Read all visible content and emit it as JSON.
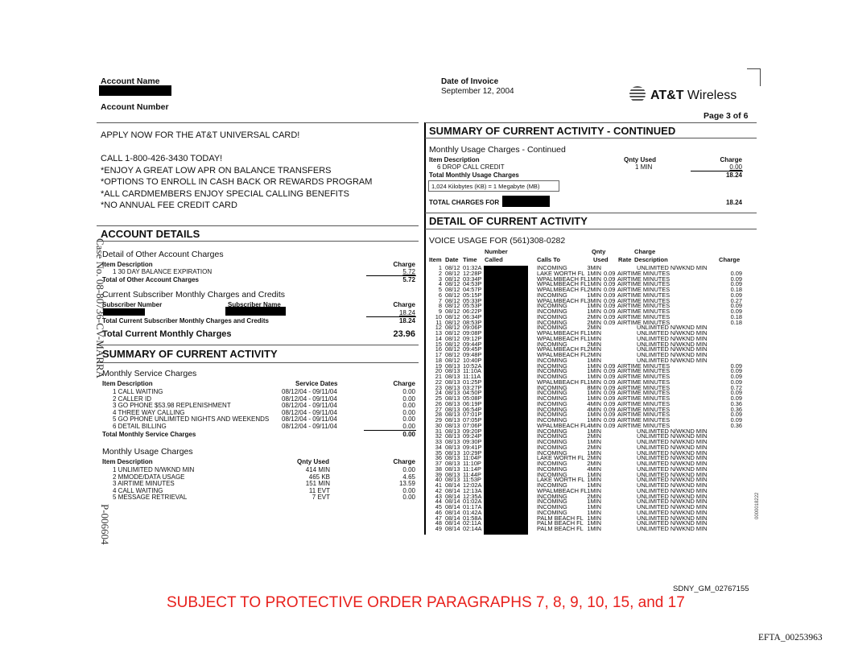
{
  "header": {
    "account_name_label": "Account Name",
    "account_number_label": "Account Number",
    "date_label": "Date of Invoice",
    "date_value": "September 12, 2004",
    "logo": "AT&T Wireless",
    "page": "Page  3 of 6"
  },
  "promo": {
    "lines": [
      "APPLY NOW FOR THE AT&T UNIVERSAL CARD!",
      "CALL 1-800-426-3430 TODAY!",
      "*ENJOY A GREAT LOW APR ON BALANCE TRANSFERS",
      "*OPTIONS TO ENROLL IN CASH BACK OR REWARDS PROGRAM",
      "*ALL CARDMEMBERS ENJOY SPECIAL CALLING BENEFITS",
      "*NO ANNUAL FEE CREDIT CARD"
    ]
  },
  "account_details": {
    "title": "ACCOUNT DETAILS",
    "other_title": "Detail of Other Account Charges",
    "item_desc": "Item Description",
    "charge": "Charge",
    "other_item": "1 30 DAY BALANCE EXPIRATION",
    "other_item_charge": "5.72",
    "other_total_label": "Total of Other Account Charges",
    "other_total": "5.72",
    "sub_title": "Current Subscriber Monthly Charges and Credits",
    "sub_number": "Subscriber Number",
    "sub_name": "Subscriber Name",
    "sub_charge": "18.24",
    "sub_total_label": "Total Current Subscriber Monthly Charges and Credits",
    "sub_total": "18.24",
    "total_label": "Total Current Monthly Charges",
    "total": "23.96"
  },
  "summary": {
    "title": "SUMMARY OF CURRENT ACTIVITY",
    "service_title": "Monthly Service Charges",
    "item_desc": "Item Description",
    "dates": "Service Dates",
    "charge": "Charge",
    "services": [
      {
        "d": "1 CALL WAITING",
        "dt": "08/12/04 - 09/11/04",
        "c": "0.00"
      },
      {
        "d": "2 CALLER ID",
        "dt": "08/12/04 - 09/11/04",
        "c": "0.00"
      },
      {
        "d": "3 GO PHONE $53.98 REPLENISHMENT",
        "dt": "08/12/04 - 09/11/04",
        "c": "0.00"
      },
      {
        "d": "4 THREE WAY CALLING",
        "dt": "08/12/04 - 09/11/04",
        "c": "0.00"
      },
      {
        "d": "5 GO PHONE UNLIMITED NIGHTS AND WEEKENDS",
        "dt": "08/12/04 - 09/11/04",
        "c": "0.00"
      },
      {
        "d": "6 DETAIL BILLING",
        "dt": "08/12/04 - 09/11/04",
        "c": "0.00"
      }
    ],
    "service_total_label": "Total Monthly Service Charges",
    "service_total": "0.00",
    "usage_title": "Monthly Usage Charges",
    "qty": "Qnty Used",
    "usage": [
      {
        "d": "1 UNLIMITED N/WKND MIN",
        "q": "414 MIN",
        "c": "0.00"
      },
      {
        "d": "2 MMODE/DATA USAGE",
        "q": "465 KB",
        "c": "4.65"
      },
      {
        "d": "3 AIRTIME MINUTES",
        "q": "151 MIN",
        "c": "13.59"
      },
      {
        "d": "4 CALL WAITING",
        "q": "11 EVT",
        "c": "0.00"
      },
      {
        "d": "5 MESSAGE RETRIEVAL",
        "q": "7 EVT",
        "c": "0.00"
      }
    ]
  },
  "continued": {
    "title": "SUMMARY OF CURRENT ACTIVITY - CONTINUED",
    "usage_title": "Monthly Usage Charges - Continued",
    "item_desc": "Item Description",
    "qty": "Qnty Used",
    "charge": "Charge",
    "item": "6 DROP CALL CREDIT",
    "item_qty": "1 MIN",
    "item_charge": "0.00",
    "total_label": "Total Monthly Usage Charges",
    "total": "18.24",
    "note": "1,024 Kilobytes (KB) = 1 Megabyte (MB)",
    "grand_label": "TOTAL CHARGES FOR",
    "grand": "18.24"
  },
  "detail": {
    "title": "DETAIL OF CURRENT ACTIVITY",
    "voice_title": "VOICE USAGE FOR (561)308-0282",
    "cols": {
      "item": "Item",
      "date": "Date",
      "time": "Time",
      "number": "Number",
      "called": "Called",
      "calls_to": "Calls To",
      "qnty": "Qnty",
      "used": "Used",
      "rate": "Rate",
      "charge_top": "Charge",
      "desc": "Description",
      "charge": "Charge"
    },
    "rows": [
      [
        "1",
        "08/12",
        "01:32A",
        "INCOMING",
        "3MIN",
        "",
        "UNLIMITED N/WKND MIN",
        ""
      ],
      [
        "2",
        "08/12",
        "12:28P",
        "LAKE WORTH FL",
        "1MIN",
        "0.09",
        "AIRTIME MINUTES",
        "0.09"
      ],
      [
        "3",
        "08/12",
        "03:34P",
        "WPALMBEACH FL",
        "1MIN",
        "0.09",
        "AIRTIME MINUTES",
        "0.09"
      ],
      [
        "4",
        "08/12",
        "04:53P",
        "WPALMBEACH FL",
        "1MIN",
        "0.09",
        "AIRTIME MINUTES",
        "0.09"
      ],
      [
        "5",
        "08/12",
        "04:57P",
        "WPALMBEACH FL",
        "2MIN",
        "0.09",
        "AIRTIME MINUTES",
        "0.18"
      ],
      [
        "6",
        "08/12",
        "05:15P",
        "INCOMING",
        "1MIN",
        "0.09",
        "AIRTIME MINUTES",
        "0.09"
      ],
      [
        "7",
        "08/12",
        "05:33P",
        "WPALMBEACH FL",
        "3MIN",
        "0.09",
        "AIRTIME MINUTES",
        "0.27"
      ],
      [
        "8",
        "08/12",
        "05:53P",
        "INCOMING",
        "1MIN",
        "0.09",
        "AIRTIME MINUTES",
        "0.09"
      ],
      [
        "9",
        "08/12",
        "06:22P",
        "INCOMING",
        "1MIN",
        "0.09",
        "AIRTIME MINUTES",
        "0.09"
      ],
      [
        "10",
        "08/12",
        "06:34P",
        "INCOMING",
        "2MIN",
        "0.09",
        "AIRTIME MINUTES",
        "0.18"
      ],
      [
        "11",
        "08/12",
        "08:53P",
        "INCOMING",
        "2MIN",
        "0.09",
        "AIRTIME MINUTES",
        "0.18"
      ],
      [
        "12",
        "08/12",
        "09:06P",
        "INCOMING",
        "2MIN",
        "",
        "UNLIMITED N/WKND MIN",
        ""
      ],
      [
        "13",
        "08/12",
        "09:08P",
        "WPALMBEACH FL",
        "1MIN",
        "",
        "UNLIMITED N/WKND MIN",
        ""
      ],
      [
        "14",
        "08/12",
        "09:12P",
        "WPALMBEACH FL",
        "1MIN",
        "",
        "UNLIMITED N/WKND MIN",
        ""
      ],
      [
        "15",
        "08/12",
        "09:44P",
        "INCOMING",
        "2MIN",
        "",
        "UNLIMITED N/WKND MIN",
        ""
      ],
      [
        "16",
        "08/12",
        "09:45P",
        "WPALMBEACH FL",
        "2MIN",
        "",
        "UNLIMITED N/WKND MIN",
        ""
      ],
      [
        "17",
        "08/12",
        "09:48P",
        "WPALMBEACH FL",
        "2MIN",
        "",
        "UNLIMITED N/WKND MIN",
        ""
      ],
      [
        "18",
        "08/12",
        "10:40P",
        "INCOMING",
        "1MIN",
        "",
        "UNLIMITED N/WKND MIN",
        ""
      ],
      [
        "19",
        "08/13",
        "10:52A",
        "INCOMING",
        "1MIN",
        "0.09",
        "AIRTIME MINUTES",
        "0.09"
      ],
      [
        "20",
        "08/13",
        "11:10A",
        "INCOMING",
        "1MIN",
        "0.09",
        "AIRTIME MINUTES",
        "0.09"
      ],
      [
        "21",
        "08/13",
        "11:11A",
        "INCOMING",
        "1MIN",
        "0.09",
        "AIRTIME MINUTES",
        "0.09"
      ],
      [
        "22",
        "08/13",
        "01:25P",
        "WPALMBEACH FL",
        "1MIN",
        "0.09",
        "AIRTIME MINUTES",
        "0.09"
      ],
      [
        "23",
        "08/13",
        "03:27P",
        "INCOMING",
        "8MIN",
        "0.09",
        "AIRTIME MINUTES",
        "0.72"
      ],
      [
        "24",
        "08/13",
        "04:50P",
        "INCOMING",
        "1MIN",
        "0.09",
        "AIRTIME MINUTES",
        "0.09"
      ],
      [
        "25",
        "08/13",
        "05:08P",
        "INCOMING",
        "1MIN",
        "0.09",
        "AIRTIME MINUTES",
        "0.09"
      ],
      [
        "26",
        "08/13",
        "06:19P",
        "INCOMING",
        "4MIN",
        "0.09",
        "AIRTIME MINUTES",
        "0.36"
      ],
      [
        "27",
        "08/13",
        "06:54P",
        "INCOMING",
        "4MIN",
        "0.09",
        "AIRTIME MINUTES",
        "0.36"
      ],
      [
        "28",
        "08/13",
        "07:01P",
        "INCOMING",
        "1MIN",
        "0.09",
        "AIRTIME MINUTES",
        "0.09"
      ],
      [
        "29",
        "08/13",
        "07:05P",
        "INCOMING",
        "1MIN",
        "0.09",
        "AIRTIME MINUTES",
        "0.09"
      ],
      [
        "30",
        "08/13",
        "07:06P",
        "WPALMBEACH FL",
        "4MIN",
        "0.09",
        "AIRTIME MINUTES",
        "0.36"
      ],
      [
        "31",
        "08/13",
        "09:20P",
        "INCOMING",
        "1MIN",
        "",
        "UNLIMITED N/WKND MIN",
        ""
      ],
      [
        "32",
        "08/13",
        "09:24P",
        "INCOMING",
        "2MIN",
        "",
        "UNLIMITED N/WKND MIN",
        ""
      ],
      [
        "33",
        "08/13",
        "09:30P",
        "INCOMING",
        "1MIN",
        "",
        "UNLIMITED N/WKND MIN",
        ""
      ],
      [
        "34",
        "08/13",
        "09:41P",
        "INCOMING",
        "2MIN",
        "",
        "UNLIMITED N/WKND MIN",
        ""
      ],
      [
        "35",
        "08/13",
        "10:29P",
        "INCOMING",
        "1MIN",
        "",
        "UNLIMITED N/WKND MIN",
        ""
      ],
      [
        "36",
        "08/13",
        "11:04P",
        "LAKE WORTH FL",
        "2MIN",
        "",
        "UNLIMITED N/WKND MIN",
        ""
      ],
      [
        "37",
        "08/13",
        "11:10P",
        "INCOMING",
        "2MIN",
        "",
        "UNLIMITED N/WKND MIN",
        ""
      ],
      [
        "38",
        "08/13",
        "11:14P",
        "INCOMING",
        "4MIN",
        "",
        "UNLIMITED N/WKND MIN",
        ""
      ],
      [
        "39",
        "08/13",
        "11:44P",
        "INCOMING",
        "1MIN",
        "",
        "UNLIMITED N/WKND MIN",
        ""
      ],
      [
        "40",
        "08/13",
        "11:53P",
        "LAKE WORTH FL",
        "1MIN",
        "",
        "UNLIMITED N/WKND MIN",
        ""
      ],
      [
        "41",
        "08/14",
        "12:02A",
        "INCOMING",
        "1MIN",
        "",
        "UNLIMITED N/WKND MIN",
        ""
      ],
      [
        "42",
        "08/14",
        "12:13A",
        "WPALMBEACH FL",
        "1MIN",
        "",
        "UNLIMITED N/WKND MIN",
        ""
      ],
      [
        "43",
        "08/14",
        "12:35A",
        "INCOMING",
        "2MIN",
        "",
        "UNLIMITED N/WKND MIN",
        ""
      ],
      [
        "44",
        "08/14",
        "01:02A",
        "INCOMING",
        "1MIN",
        "",
        "UNLIMITED N/WKND MIN",
        ""
      ],
      [
        "45",
        "08/14",
        "01:17A",
        "INCOMING",
        "1MIN",
        "",
        "UNLIMITED N/WKND MIN",
        ""
      ],
      [
        "46",
        "08/14",
        "01:42A",
        "INCOMING",
        "1MIN",
        "",
        "UNLIMITED N/WKND MIN",
        ""
      ],
      [
        "47",
        "08/14",
        "01:58A",
        "PALM BEACH FL",
        "1MIN",
        "",
        "UNLIMITED N/WKND MIN",
        ""
      ],
      [
        "48",
        "08/14",
        "02:11A",
        "PALM BEACH FL",
        "1MIN",
        "",
        "UNLIMITED N/WKND MIN",
        ""
      ],
      [
        "49",
        "08/14",
        "02:14A",
        "PALM BEACH FL",
        "1MIN",
        "",
        "UNLIMITED N/WKND MIN",
        ""
      ]
    ]
  },
  "margins": {
    "case_no": "Case No. 08-80736-CV-MARRA",
    "bates_left": "P-006604",
    "bates_right": "0000018222"
  },
  "footer": {
    "sdny": "SDNY_GM_02767155",
    "protective": "SUBJECT TO PROTECTIVE ORDER PARAGRAPHS 7, 8, 9, 10, 15, and 17",
    "efta": "EFTA_00253963"
  },
  "colors": {
    "protective_text": "#e8201c"
  }
}
